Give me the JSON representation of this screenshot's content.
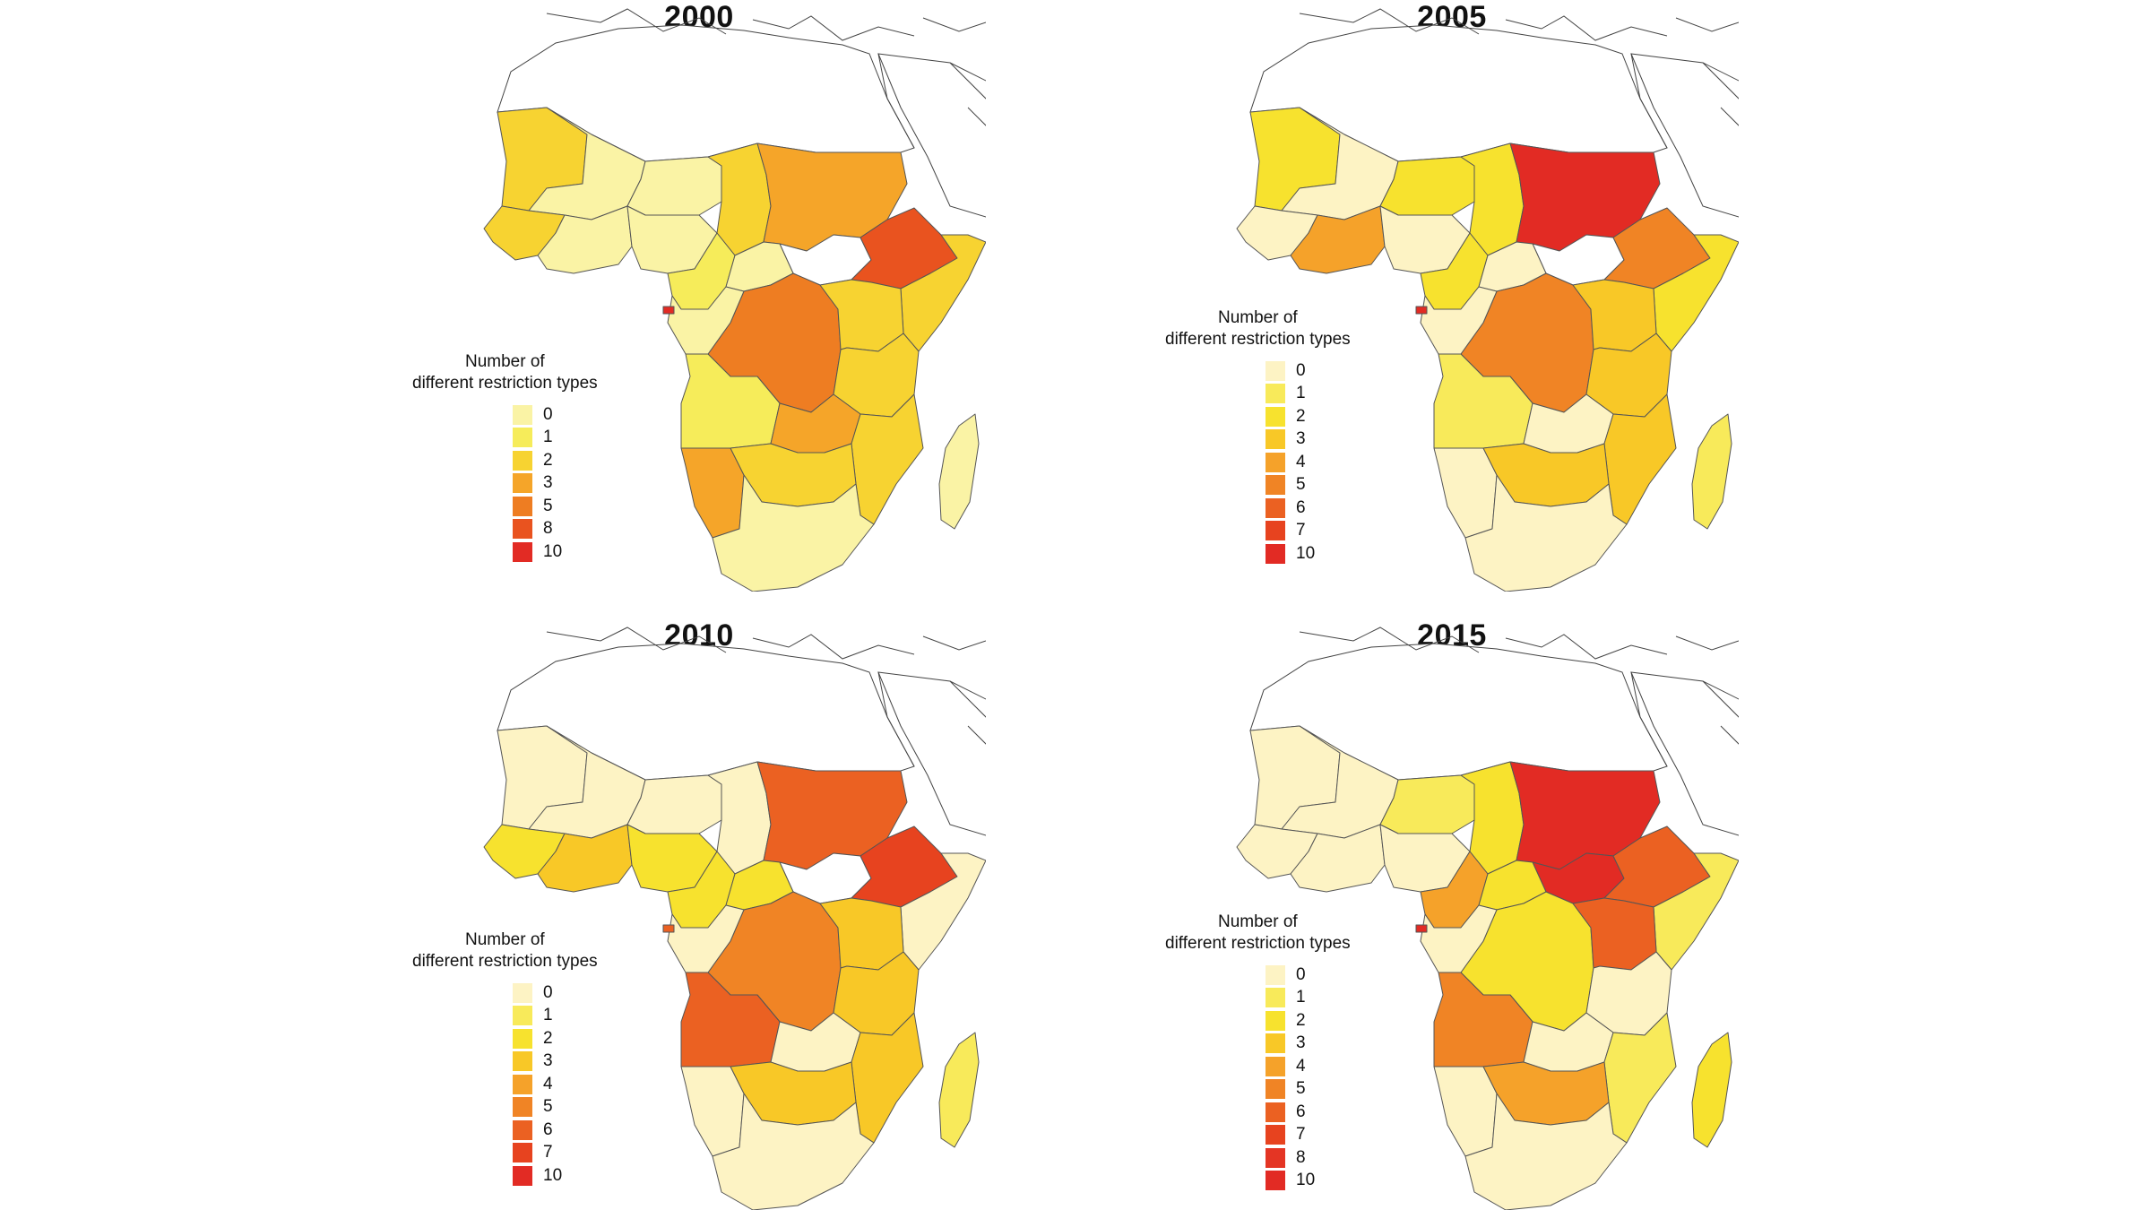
{
  "figure": {
    "panels": [
      {
        "year": "2000",
        "legend_title_line1": "Number of",
        "legend_title_line2": "different restriction types",
        "legend_items": [
          {
            "label": "0",
            "color": "#faf3a5"
          },
          {
            "label": "1",
            "color": "#f6ec5a"
          },
          {
            "label": "2",
            "color": "#f7d331"
          },
          {
            "label": "3",
            "color": "#f5a529"
          },
          {
            "label": "5",
            "color": "#ee7d22"
          },
          {
            "label": "8",
            "color": "#e9531f"
          },
          {
            "label": "10",
            "color": "#e22b24"
          }
        ],
        "regions": {
          "mauritania": "#f7d331",
          "mali": "#faf3a5",
          "niger": "#faf3a5",
          "chad": "#f7d331",
          "sudan": "#f5a529",
          "south_sudan": "#ffffff",
          "ethiopia": "#e9531f",
          "somalia": "#f7d331",
          "west_coast": "#f7d331",
          "coastal_west": "#faf3a5",
          "nigeria": "#faf3a5",
          "cameroon": "#f6ec5a",
          "car": "#faf3a5",
          "drc": "#ee7d22",
          "gabon_congo": "#faf3a5",
          "kenya_uganda": "#f7d331",
          "tanzania": "#f7d331",
          "angola": "#f6ec5a",
          "zambia": "#f5a529",
          "mozambique": "#f7d331",
          "namibia": "#f5a529",
          "botswana_zim": "#f7d331",
          "south_africa": "#faf3a5",
          "madagascar": "#faf3a5",
          "eq_guinea": "#e22b24"
        }
      },
      {
        "year": "2005",
        "legend_title_line1": "Number of",
        "legend_title_line2": "different restriction types",
        "legend_items": [
          {
            "label": "0",
            "color": "#fdf3c4"
          },
          {
            "label": "1",
            "color": "#f8ea5a"
          },
          {
            "label": "2",
            "color": "#f7e22e"
          },
          {
            "label": "3",
            "color": "#f8c827"
          },
          {
            "label": "4",
            "color": "#f5a22a"
          },
          {
            "label": "5",
            "color": "#f08425"
          },
          {
            "label": "6",
            "color": "#eb6122"
          },
          {
            "label": "7",
            "color": "#e7431f"
          },
          {
            "label": "10",
            "color": "#e22b24"
          }
        ],
        "regions": {
          "mauritania": "#f7e22e",
          "mali": "#fdf3c4",
          "niger": "#f7e22e",
          "chad": "#f7e22e",
          "sudan": "#e22b24",
          "south_sudan": "#ffffff",
          "ethiopia": "#f08425",
          "somalia": "#f7e22e",
          "west_coast": "#fdf3c4",
          "coastal_west": "#f5a22a",
          "nigeria": "#fdf3c4",
          "cameroon": "#f7e22e",
          "car": "#fdf3c4",
          "drc": "#f08425",
          "gabon_congo": "#fdf3c4",
          "kenya_uganda": "#f8c827",
          "tanzania": "#f8c827",
          "angola": "#f8ea5a",
          "zambia": "#fdf3c4",
          "mozambique": "#f8c827",
          "namibia": "#fdf3c4",
          "botswana_zim": "#f8c827",
          "south_africa": "#fdf3c4",
          "madagascar": "#f8ea5a",
          "eq_guinea": "#e22b24"
        }
      },
      {
        "year": "2010",
        "legend_title_line1": "Number of",
        "legend_title_line2": "different restriction types",
        "legend_items": [
          {
            "label": "0",
            "color": "#fdf3c4"
          },
          {
            "label": "1",
            "color": "#f8ea5a"
          },
          {
            "label": "2",
            "color": "#f7e22e"
          },
          {
            "label": "3",
            "color": "#f8c827"
          },
          {
            "label": "4",
            "color": "#f5a22a"
          },
          {
            "label": "5",
            "color": "#f08425"
          },
          {
            "label": "6",
            "color": "#eb6122"
          },
          {
            "label": "7",
            "color": "#e7431f"
          },
          {
            "label": "10",
            "color": "#e22b24"
          }
        ],
        "regions": {
          "mauritania": "#fdf3c4",
          "mali": "#fdf3c4",
          "niger": "#fdf3c4",
          "chad": "#fdf3c4",
          "sudan": "#eb6122",
          "south_sudan": "#ffffff",
          "ethiopia": "#e7431f",
          "somalia": "#fdf3c4",
          "west_coast": "#f7e22e",
          "coastal_west": "#f8c827",
          "nigeria": "#f7e22e",
          "cameroon": "#f7e22e",
          "car": "#f7e22e",
          "drc": "#f08425",
          "gabon_congo": "#fdf3c4",
          "kenya_uganda": "#f8c827",
          "tanzania": "#f8c827",
          "angola": "#eb6122",
          "zambia": "#fdf3c4",
          "mozambique": "#f8c827",
          "namibia": "#fdf3c4",
          "botswana_zim": "#f8c827",
          "south_africa": "#fdf3c4",
          "madagascar": "#f8ea5a",
          "eq_guinea": "#eb6122"
        }
      },
      {
        "year": "2015",
        "legend_title_line1": "Number of",
        "legend_title_line2": "different restriction types",
        "legend_items": [
          {
            "label": "0",
            "color": "#fdf3c4"
          },
          {
            "label": "1",
            "color": "#f8ea5a"
          },
          {
            "label": "2",
            "color": "#f7e22e"
          },
          {
            "label": "3",
            "color": "#f8c827"
          },
          {
            "label": "4",
            "color": "#f5a22a"
          },
          {
            "label": "5",
            "color": "#f08425"
          },
          {
            "label": "6",
            "color": "#eb6122"
          },
          {
            "label": "7",
            "color": "#e7431f"
          },
          {
            "label": "8",
            "color": "#e43524"
          },
          {
            "label": "10",
            "color": "#e22b24"
          }
        ],
        "regions": {
          "mauritania": "#fdf3c4",
          "mali": "#fdf3c4",
          "niger": "#f8ea5a",
          "chad": "#f7e22e",
          "sudan": "#e22b24",
          "south_sudan": "#e22b24",
          "ethiopia": "#eb6122",
          "somalia": "#f8ea5a",
          "west_coast": "#fdf3c4",
          "coastal_west": "#fdf3c4",
          "nigeria": "#fdf3c4",
          "cameroon": "#f5a22a",
          "car": "#f7e22e",
          "drc": "#f7e22e",
          "gabon_congo": "#fdf3c4",
          "kenya_uganda": "#eb6122",
          "tanzania": "#fdf3c4",
          "angola": "#f08425",
          "zambia": "#fdf3c4",
          "mozambique": "#f8ea5a",
          "namibia": "#fdf3c4",
          "botswana_zim": "#f5a22a",
          "south_africa": "#fdf3c4",
          "madagascar": "#f7e22e",
          "eq_guinea": "#e22b24"
        }
      }
    ]
  }
}
